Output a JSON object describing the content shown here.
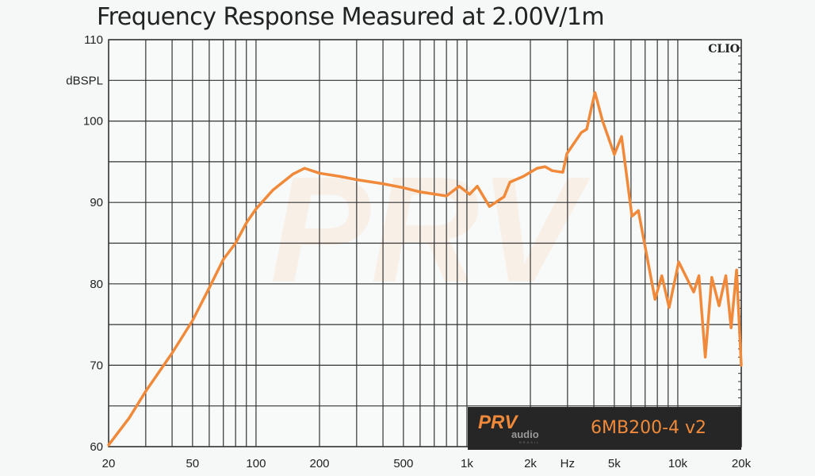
{
  "chart_data": {
    "type": "line",
    "title": "Frequency Response Measured at 2.00V/1m",
    "ylabel": "dBSPL",
    "xlabel": "Hz",
    "xscale": "log",
    "xlim": [
      20,
      20000
    ],
    "ylim": [
      60,
      110
    ],
    "grid": true,
    "brand_label": "CLIO",
    "legend": {
      "logo": "PRV audio",
      "logo_sub": "BRASIL",
      "model": "6MB200-4 v2",
      "placement": "bottom-right"
    },
    "yticks": [
      60,
      70,
      80,
      90,
      100,
      110
    ],
    "xticks": [
      {
        "v": 20,
        "l": "20"
      },
      {
        "v": 50,
        "l": "50"
      },
      {
        "v": 100,
        "l": "100"
      },
      {
        "v": 200,
        "l": "200"
      },
      {
        "v": 500,
        "l": "500"
      },
      {
        "v": 1000,
        "l": "1k"
      },
      {
        "v": 2000,
        "l": "2k"
      },
      {
        "v": 3000,
        "l": "Hz"
      },
      {
        "v": 5000,
        "l": "5k"
      },
      {
        "v": 10000,
        "l": "10k"
      },
      {
        "v": 20000,
        "l": "20k"
      }
    ],
    "series": [
      {
        "name": "6MB200-4 v2",
        "color": "#f08a3a",
        "x": [
          20,
          25,
          30,
          40,
          50,
          60,
          70,
          80,
          90,
          100,
          120,
          150,
          170,
          200,
          250,
          300,
          400,
          500,
          600,
          800,
          920,
          1030,
          1120,
          1280,
          1500,
          1600,
          1850,
          2150,
          2350,
          2540,
          2850,
          2980,
          3490,
          3700,
          3900,
          4050,
          4400,
          5000,
          5410,
          6060,
          6500,
          7800,
          8400,
          9100,
          10100,
          11900,
          12600,
          13500,
          14500,
          15700,
          16900,
          17900,
          19000,
          20000
        ],
        "y": [
          60.2,
          63.5,
          66.8,
          71.5,
          75.5,
          79.5,
          83,
          85,
          87.5,
          89.2,
          91.5,
          93.5,
          94.2,
          93.6,
          93.2,
          92.8,
          92.3,
          91.8,
          91.3,
          90.8,
          92,
          91,
          92,
          89.5,
          90.7,
          92.5,
          93.2,
          94.2,
          94.4,
          93.9,
          93.7,
          96,
          98.6,
          99,
          101.7,
          103.5,
          100,
          95.9,
          98.1,
          88.3,
          89,
          78.1,
          81,
          77.1,
          82.7,
          79,
          81,
          71,
          80.8,
          77.3,
          81,
          74.6,
          81.7,
          70
        ]
      }
    ]
  }
}
